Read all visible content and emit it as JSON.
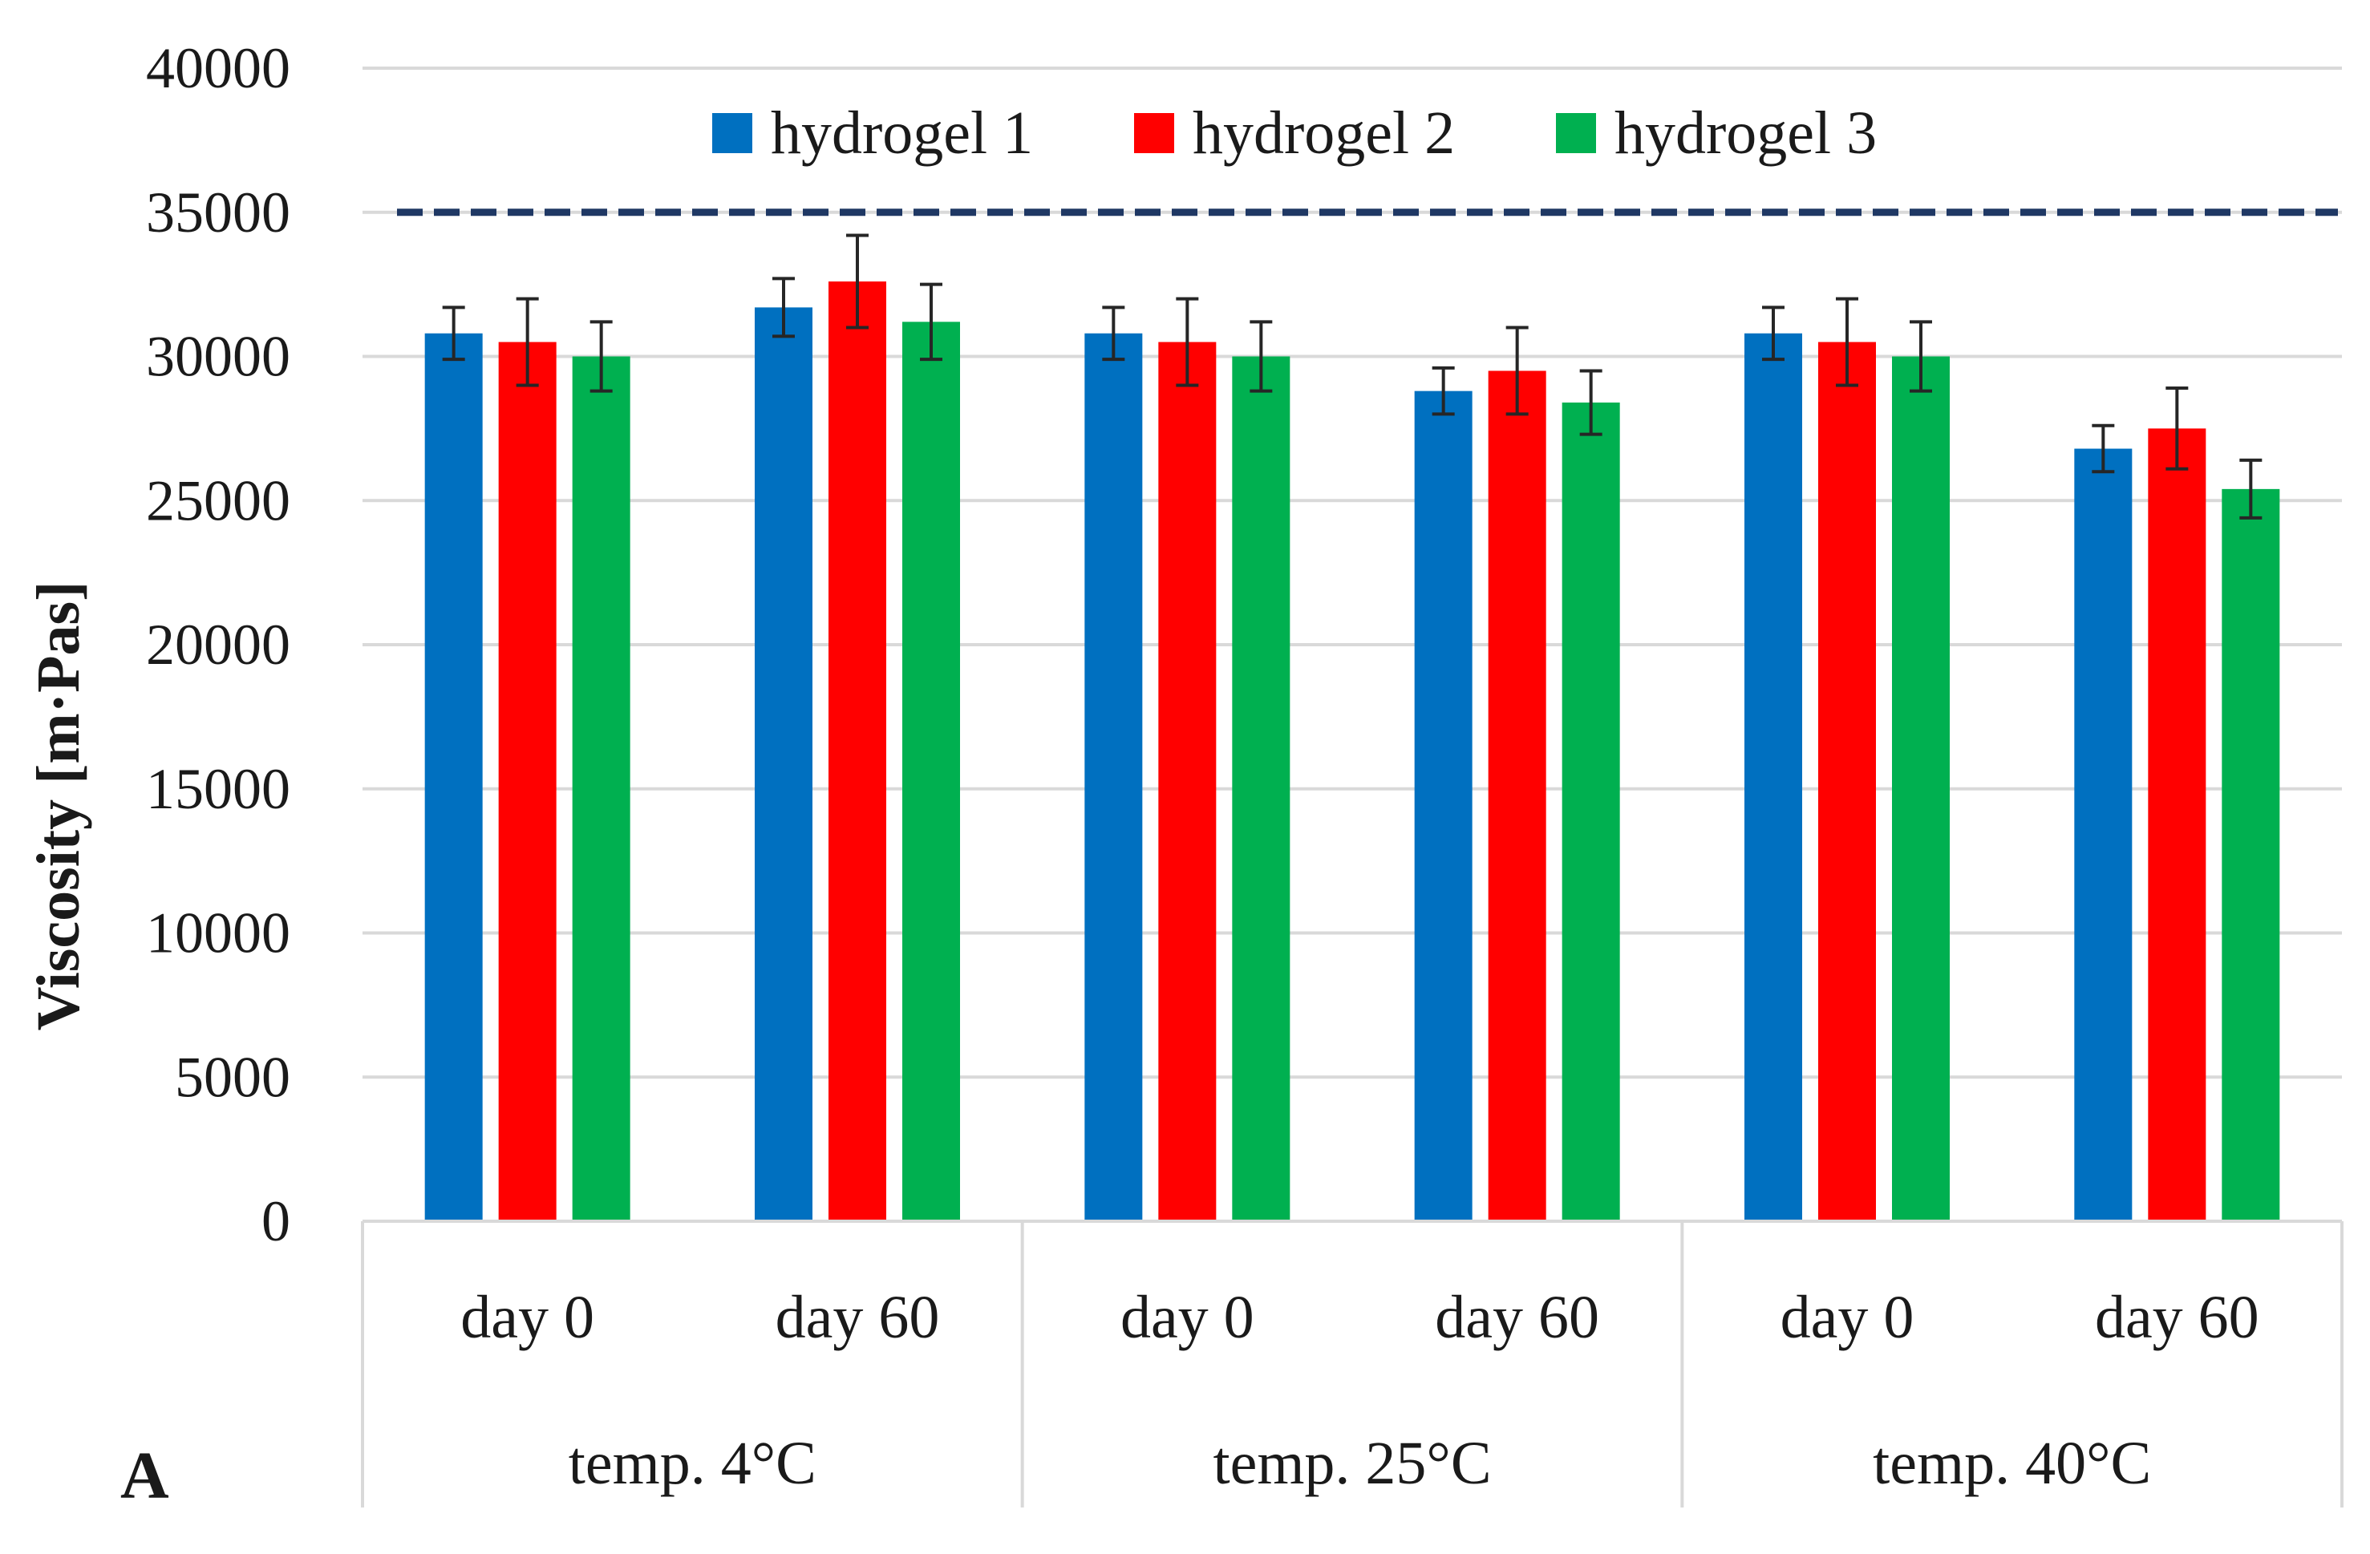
{
  "chart_data": {
    "type": "bar",
    "panel_label": "A",
    "ylabel": "Viscosity [m·Pas]",
    "xlabel": "",
    "ylim": [
      0,
      40000
    ],
    "yticks": [
      0,
      5000,
      10000,
      15000,
      20000,
      25000,
      30000,
      35000,
      40000
    ],
    "grid": true,
    "legend_position": "top-center",
    "categories": [
      "day 0",
      "day 60",
      "day 0",
      "day 60",
      "day 0",
      "day 60"
    ],
    "groups": [
      {
        "label": "temp. 4°C",
        "span": 2
      },
      {
        "label": "temp. 25°C",
        "span": 2
      },
      {
        "label": "temp. 40°C",
        "span": 2
      }
    ],
    "series": [
      {
        "name": "hydrogel 1",
        "color": "#0070c0",
        "values": [
          30800,
          31700,
          30800,
          28800,
          30800,
          26800
        ],
        "errors": [
          900,
          1000,
          900,
          800,
          900,
          800
        ]
      },
      {
        "name": "hydrogel 2",
        "color": "#ff0000",
        "values": [
          30500,
          32600,
          30500,
          29500,
          30500,
          27500
        ],
        "errors": [
          1500,
          1600,
          1500,
          1500,
          1500,
          1400
        ]
      },
      {
        "name": "hydrogel 3",
        "color": "#00b050",
        "values": [
          30000,
          31200,
          30000,
          28400,
          30000,
          25400
        ],
        "errors": [
          1200,
          1300,
          1200,
          1100,
          1200,
          1000
        ]
      }
    ],
    "reference_line": {
      "value": 35000,
      "style": "dashed",
      "color": "#1f3864"
    }
  }
}
